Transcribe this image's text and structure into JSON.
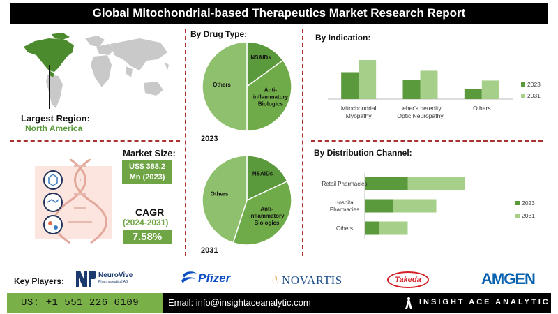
{
  "title": "Global Mitochondrial-based Therapeutics Market Research Report",
  "region": {
    "label": "Largest Region:",
    "value": "North America"
  },
  "market_size": {
    "label": "Market Size:",
    "value_line1": "US$ 388.2",
    "value_line2": "Mn (2023)"
  },
  "cagr": {
    "label": "CAGR",
    "period": "(2024-2031)",
    "value": "7.58%"
  },
  "drug_type": {
    "heading": "By Drug Type:",
    "year_2023": "2023",
    "year_2031": "2031"
  },
  "indication": {
    "heading": "By  Indication:"
  },
  "distribution": {
    "heading": "By Distribution Channel:"
  },
  "key_players": {
    "label": "Key Players:",
    "neurovive": "NeuroVive",
    "neurovive_sub": "Pharmaceutical AB",
    "pfizer": "Pfizer",
    "novartis": "NOVARTIS",
    "takeda": "Takeda",
    "amgen": "AMGEN"
  },
  "footer": {
    "phone": "US: +1 551 226 6109",
    "email": "Email: info@insightaceanalytic.com",
    "brand": "INSIGHT ACE ANALYTIC"
  },
  "colors": {
    "dark_green": "#5a9a3c",
    "light_green": "#a6cf8a",
    "title_bg": "#000000",
    "accent_red": "#a9322f"
  },
  "chart_data": [
    {
      "type": "pie",
      "title": "2023",
      "labels": [
        "NSAIDs",
        "Anti-inflammatory Biologics",
        "Others"
      ],
      "values": [
        15,
        35,
        50
      ],
      "colors": [
        "#5a9a3c",
        "#6fac49",
        "#8fc06d"
      ]
    },
    {
      "type": "pie",
      "title": "2031",
      "labels": [
        "NSAIDs",
        "Anti-inflammatory Biologics",
        "Others"
      ],
      "values": [
        18,
        37,
        45
      ],
      "colors": [
        "#5a9a3c",
        "#6fac49",
        "#8fc06d"
      ]
    },
    {
      "type": "bar",
      "title": "By  Indication:",
      "categories": [
        "Mitochondrial Myopathy",
        "Leber's heredity Optic Neuropathy",
        "Others"
      ],
      "series": [
        {
          "name": "2023",
          "values": [
            55,
            40,
            20
          ]
        },
        {
          "name": "2031",
          "values": [
            80,
            58,
            38
          ]
        }
      ],
      "ylim": [
        0,
        100
      ],
      "legend": "right"
    },
    {
      "type": "bar",
      "orientation": "horizontal",
      "stacked": true,
      "title": "By Distribution Channel:",
      "categories": [
        "Retail Pharmacies",
        "Hospital Pharmacies",
        "Others"
      ],
      "series": [
        {
          "name": "2023",
          "values": [
            30,
            20,
            10
          ]
        },
        {
          "name": "2031",
          "values": [
            40,
            30,
            20
          ]
        }
      ],
      "xlim": [
        0,
        100
      ],
      "legend": "right"
    }
  ]
}
